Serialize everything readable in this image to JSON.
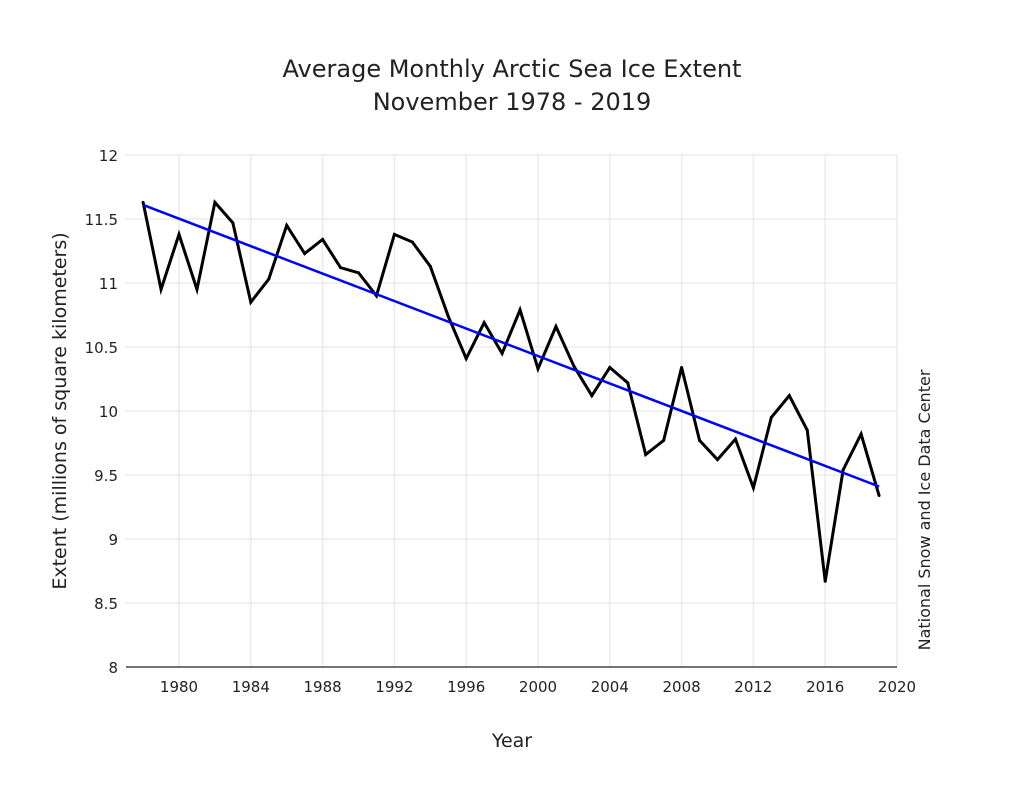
{
  "chart_data": {
    "type": "line",
    "title": "Average Monthly Arctic Sea Ice Extent",
    "subtitle": "November 1978 - 2019",
    "xlabel": "Year",
    "ylabel": "Extent (millions of square kilometers)",
    "credit": "National Snow and Ice Data Center",
    "xlim": [
      1976,
      2020
    ],
    "ylim": [
      8,
      12
    ],
    "xticks": [
      1980,
      1984,
      1988,
      1992,
      1996,
      2000,
      2004,
      2008,
      2012,
      2016,
      2020
    ],
    "yticks": [
      8,
      8.5,
      9,
      9.5,
      10,
      10.5,
      11,
      11.5,
      12
    ],
    "ytick_labels": [
      "8",
      "8.5",
      "9",
      "9.5",
      "10",
      "10.5",
      "11",
      "11.5",
      "12"
    ],
    "grid": true,
    "series": [
      {
        "name": "Extent",
        "color": "#000000",
        "x": [
          1978,
          1979,
          1980,
          1981,
          1982,
          1983,
          1984,
          1985,
          1986,
          1987,
          1988,
          1989,
          1990,
          1991,
          1992,
          1993,
          1994,
          1995,
          1996,
          1997,
          1998,
          1999,
          2000,
          2001,
          2002,
          2003,
          2004,
          2005,
          2006,
          2007,
          2008,
          2009,
          2010,
          2011,
          2012,
          2013,
          2014,
          2015,
          2016,
          2017,
          2018,
          2019
        ],
        "values": [
          11.63,
          10.95,
          11.38,
          10.95,
          11.63,
          11.47,
          10.85,
          11.03,
          11.45,
          11.23,
          11.34,
          11.12,
          11.08,
          10.9,
          11.38,
          11.32,
          11.13,
          10.74,
          10.41,
          10.69,
          10.45,
          10.79,
          10.33,
          10.66,
          10.35,
          10.12,
          10.34,
          10.22,
          9.66,
          9.77,
          10.34,
          9.77,
          9.62,
          9.78,
          9.4,
          9.95,
          10.12,
          9.85,
          8.67,
          9.54,
          9.82,
          9.34
        ]
      },
      {
        "name": "Linear trend",
        "color": "#0000ff",
        "x": [
          1978,
          2019
        ],
        "values": [
          11.61,
          9.41
        ]
      }
    ]
  }
}
